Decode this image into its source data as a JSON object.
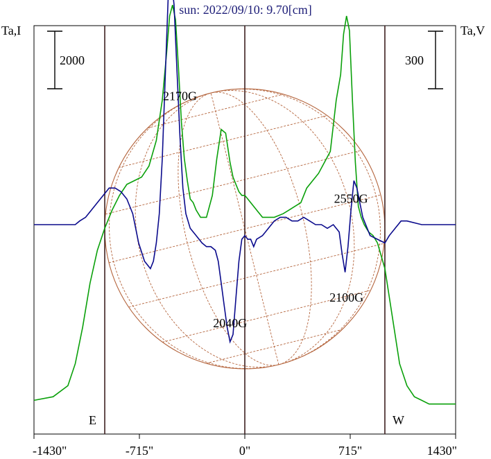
{
  "chart_data": {
    "type": "line",
    "title": "sun: 2022/09/10: 9.70[cm]",
    "left_axis_label": "Ta,I",
    "right_axis_label": "Ta,V",
    "scale_bar_left": "2000",
    "scale_bar_right": "300",
    "xlim": [
      -1430,
      1430
    ],
    "x_ticks": [
      {
        "value": -1430,
        "label": "-1430\""
      },
      {
        "value": -715,
        "label": "-715\""
      },
      {
        "value": 0,
        "label": "0\""
      },
      {
        "value": 715,
        "label": "715\""
      },
      {
        "value": 1430,
        "label": "1430\""
      }
    ],
    "limb_east": -950,
    "limb_west": 950,
    "limb_labels": {
      "east": "E",
      "west": "W"
    },
    "solar_radius_arcsec": 950,
    "colors": {
      "stokes_i": "#0aa00a",
      "stokes_v": "#0a0a8c",
      "grid": "#b4643c",
      "vertical_lines": "#3c1e1e",
      "title": "#1e1e78"
    },
    "annotations": [
      {
        "text": "2170G",
        "x": -440,
        "y_rel": 0.84
      },
      {
        "text": "2550G",
        "x": 720,
        "y_rel": 0.56
      },
      {
        "text": "2100G",
        "x": 690,
        "y_rel": 0.29
      },
      {
        "text": "2040G",
        "x": -100,
        "y_rel": 0.22
      }
    ],
    "series": [
      {
        "name": "I",
        "x": [
          -1430,
          -1300,
          -1200,
          -1150,
          -1100,
          -1050,
          -1000,
          -950,
          -900,
          -850,
          -800,
          -750,
          -700,
          -650,
          -600,
          -560,
          -530,
          -510,
          -490,
          -470,
          -450,
          -430,
          -410,
          -390,
          -370,
          -350,
          -330,
          -300,
          -260,
          -220,
          -190,
          -160,
          -130,
          -100,
          -80,
          -60,
          -40,
          -20,
          0,
          20,
          40,
          80,
          120,
          160,
          200,
          260,
          300,
          340,
          380,
          420,
          460,
          500,
          540,
          580,
          620,
          650,
          670,
          690,
          710,
          730,
          750,
          770,
          790,
          810,
          840,
          870,
          900,
          950,
          1000,
          1050,
          1100,
          1150,
          1200,
          1250,
          1300,
          1430
        ],
        "y": [
          0.02,
          0.03,
          0.06,
          0.12,
          0.22,
          0.34,
          0.43,
          0.49,
          0.54,
          0.58,
          0.61,
          0.62,
          0.63,
          0.66,
          0.73,
          0.84,
          0.97,
          1.07,
          1.1,
          1.06,
          0.93,
          0.78,
          0.68,
          0.62,
          0.57,
          0.56,
          0.54,
          0.52,
          0.52,
          0.58,
          0.68,
          0.76,
          0.75,
          0.67,
          0.63,
          0.61,
          0.59,
          0.58,
          0.58,
          0.57,
          0.56,
          0.54,
          0.52,
          0.52,
          0.52,
          0.53,
          0.54,
          0.55,
          0.56,
          0.6,
          0.62,
          0.64,
          0.67,
          0.7,
          0.84,
          0.91,
          1.02,
          1.07,
          1.03,
          0.84,
          0.67,
          0.55,
          0.52,
          0.5,
          0.48,
          0.47,
          0.45,
          0.38,
          0.25,
          0.12,
          0.06,
          0.03,
          0.02,
          0.01,
          0.01,
          0.01
        ]
      },
      {
        "name": "V",
        "x": [
          -1430,
          -1300,
          -1200,
          -1150,
          -1120,
          -1080,
          -1040,
          -1000,
          -960,
          -920,
          -880,
          -840,
          -800,
          -760,
          -720,
          -680,
          -640,
          -620,
          -600,
          -580,
          -560,
          -540,
          -520,
          -500,
          -480,
          -460,
          -440,
          -420,
          -400,
          -370,
          -330,
          -290,
          -260,
          -230,
          -200,
          -180,
          -160,
          -140,
          -120,
          -100,
          -80,
          -60,
          -40,
          -20,
          0,
          20,
          40,
          60,
          80,
          120,
          160,
          200,
          240,
          280,
          320,
          360,
          400,
          440,
          480,
          520,
          560,
          600,
          640,
          660,
          680,
          700,
          720,
          740,
          760,
          800,
          850,
          900,
          950,
          980,
          1020,
          1060,
          1100,
          1200,
          1300,
          1430
        ],
        "y": [
          0.5,
          0.5,
          0.5,
          0.5,
          0.51,
          0.52,
          0.54,
          0.56,
          0.58,
          0.6,
          0.6,
          0.59,
          0.57,
          0.53,
          0.45,
          0.4,
          0.38,
          0.4,
          0.45,
          0.53,
          0.68,
          0.9,
          1.12,
          1.18,
          1.1,
          0.92,
          0.74,
          0.6,
          0.53,
          0.49,
          0.47,
          0.45,
          0.44,
          0.44,
          0.43,
          0.4,
          0.34,
          0.28,
          0.22,
          0.18,
          0.2,
          0.3,
          0.4,
          0.46,
          0.47,
          0.46,
          0.46,
          0.44,
          0.46,
          0.47,
          0.49,
          0.51,
          0.52,
          0.52,
          0.51,
          0.51,
          0.52,
          0.51,
          0.5,
          0.5,
          0.49,
          0.5,
          0.48,
          0.42,
          0.37,
          0.44,
          0.54,
          0.62,
          0.6,
          0.52,
          0.47,
          0.46,
          0.45,
          0.47,
          0.49,
          0.51,
          0.51,
          0.5,
          0.5,
          0.5
        ]
      }
    ]
  }
}
